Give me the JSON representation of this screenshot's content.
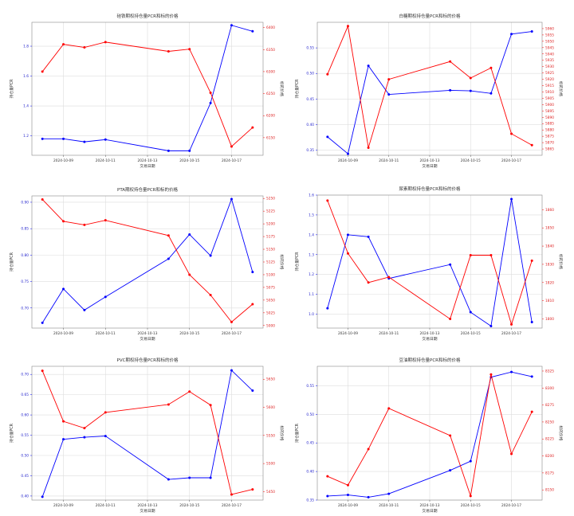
{
  "colors": {
    "pcr": "#0000ff",
    "price": "#ff0000",
    "grid": "#dddddd",
    "frame": "#888888"
  },
  "chart_data": [
    {
      "type": "line",
      "title": "硅铁期权持仓量PCR和标的价格",
      "xlabel": "交易日期",
      "ylabel": "持仓量PCR",
      "y2label": "标的价格",
      "x": [
        "2024-10-08",
        "2024-10-09",
        "2024-10-10",
        "2024-10-11",
        "2024-10-14",
        "2024-10-15",
        "2024-10-16",
        "2024-10-17",
        "2024-10-18"
      ],
      "xticks": [
        "2024-10-09",
        "2024-10-11",
        "2024-10-13",
        "2024-10-15",
        "2024-10-17"
      ],
      "xlim": [
        "2024-10-07T12",
        "2024-10-18T12"
      ],
      "ylim": [
        1.07,
        1.96
      ],
      "yticks": [
        "1.2",
        "1.4",
        "1.6",
        "1.8"
      ],
      "y2lim": [
        6110,
        6412
      ],
      "y2ticks": [
        "6150",
        "6200",
        "6250",
        "6300",
        "6350",
        "6400"
      ],
      "grid": true,
      "series": [
        {
          "axis": "left",
          "values": [
            1.18,
            1.18,
            1.16,
            1.175,
            1.1,
            1.1,
            1.42,
            1.94,
            1.9
          ]
        },
        {
          "axis": "right",
          "values": [
            6300,
            6362,
            6355,
            6367,
            6346,
            6351,
            6252,
            6130,
            6173
          ]
        }
      ]
    },
    {
      "type": "line",
      "title": "白糖期权持仓量PCR和标的价格",
      "xlabel": "交易日期",
      "ylabel": "持仓量PCR",
      "y2label": "标的价格",
      "x": [
        "2024-10-08",
        "2024-10-09",
        "2024-10-10",
        "2024-10-11",
        "2024-10-14",
        "2024-10-15",
        "2024-10-16",
        "2024-10-17",
        "2024-10-18"
      ],
      "xticks": [
        "2024-10-09",
        "2024-10-11",
        "2024-10-13",
        "2024-10-15",
        "2024-10-17"
      ],
      "xlim": [
        "2024-10-07T12",
        "2024-10-18T12"
      ],
      "ylim": [
        0.34,
        0.6
      ],
      "yticks": [
        "0.35",
        "0.40",
        "0.45",
        "0.50",
        "0.55"
      ],
      "y2lim": [
        5860,
        5965
      ],
      "y2ticks": [
        "5865",
        "5870",
        "5875",
        "5880",
        "5885",
        "5890",
        "5895",
        "5900",
        "5905",
        "5910",
        "5915",
        "5920",
        "5925",
        "5930",
        "5935",
        "5940",
        "5945",
        "5950",
        "5955",
        "5960"
      ],
      "grid": true,
      "series": [
        {
          "axis": "left",
          "values": [
            0.376,
            0.343,
            0.515,
            0.459,
            0.467,
            0.466,
            0.461,
            0.577,
            0.582
          ]
        },
        {
          "axis": "right",
          "values": [
            5924,
            5962,
            5866,
            5920,
            5934,
            5921,
            5929,
            5877,
            5868
          ]
        }
      ]
    },
    {
      "type": "line",
      "title": "PTA期权持仓量PCR和标的价格",
      "xlabel": "交易日期",
      "ylabel": "持仓量PCR",
      "y2label": "标的价格",
      "x": [
        "2024-10-08",
        "2024-10-09",
        "2024-10-10",
        "2024-10-11",
        "2024-10-14",
        "2024-10-15",
        "2024-10-16",
        "2024-10-17",
        "2024-10-18"
      ],
      "xticks": [
        "2024-10-09",
        "2024-10-11",
        "2024-10-13",
        "2024-10-15",
        "2024-10-17"
      ],
      "xlim": [
        "2024-10-07T12",
        "2024-10-18T12"
      ],
      "ylim": [
        0.662,
        0.912
      ],
      "yticks": [
        "0.70",
        "0.75",
        "0.80",
        "0.85",
        "0.90"
      ],
      "y2lim": [
        4995,
        5255
      ],
      "y2ticks": [
        "5000",
        "5025",
        "5050",
        "5075",
        "5100",
        "5125",
        "5150",
        "5175",
        "5200",
        "5225",
        "5250"
      ],
      "grid": true,
      "series": [
        {
          "axis": "left",
          "values": [
            0.672,
            0.736,
            0.696,
            0.721,
            0.793,
            0.839,
            0.799,
            0.906,
            0.768
          ]
        },
        {
          "axis": "right",
          "values": [
            5248,
            5205,
            5198,
            5207,
            5177,
            5100,
            5060,
            5007,
            5042
          ]
        }
      ]
    },
    {
      "type": "line",
      "title": "尿素期权持仓量PCR和标的价格",
      "xlabel": "交易日期",
      "ylabel": "持仓量PCR",
      "y2label": "标的价格",
      "x": [
        "2024-10-08",
        "2024-10-09",
        "2024-10-10",
        "2024-10-11",
        "2024-10-14",
        "2024-10-15",
        "2024-10-16",
        "2024-10-17",
        "2024-10-18"
      ],
      "xticks": [
        "2024-10-09",
        "2024-10-11",
        "2024-10-13",
        "2024-10-15",
        "2024-10-17"
      ],
      "xlim": [
        "2024-10-07T12",
        "2024-10-18T12"
      ],
      "ylim": [
        0.93,
        1.6
      ],
      "yticks": [
        "1.0",
        "1.1",
        "1.2",
        "1.3",
        "1.4",
        "1.5",
        "1.6"
      ],
      "y2lim": [
        1795,
        1868
      ],
      "y2ticks": [
        "1800",
        "1810",
        "1820",
        "1830",
        "1840",
        "1850",
        "1860"
      ],
      "grid": true,
      "series": [
        {
          "axis": "left",
          "values": [
            1.03,
            1.4,
            1.39,
            1.18,
            1.25,
            1.01,
            0.94,
            1.58,
            0.96
          ]
        },
        {
          "axis": "right",
          "values": [
            1865,
            1836,
            1820,
            1823,
            1800,
            1835,
            1835,
            1797,
            1832
          ]
        }
      ]
    },
    {
      "type": "line",
      "title": "PVC期权持仓量PCR和标的价格",
      "xlabel": "交易日期",
      "ylabel": "持仓量PCR",
      "y2label": "标的价格",
      "x": [
        "2024-10-08",
        "2024-10-09",
        "2024-10-10",
        "2024-10-11",
        "2024-10-14",
        "2024-10-15",
        "2024-10-16",
        "2024-10-17",
        "2024-10-18"
      ],
      "xticks": [
        "2024-10-09",
        "2024-10-11",
        "2024-10-13",
        "2024-10-15",
        "2024-10-17"
      ],
      "xlim": [
        "2024-10-07T12",
        "2024-10-18T12"
      ],
      "ylim": [
        0.39,
        0.72
      ],
      "yticks": [
        "0.40",
        "0.45",
        "0.50",
        "0.55",
        "0.60",
        "0.65",
        "0.70"
      ],
      "y2lim": [
        5435,
        5673
      ],
      "y2ticks": [
        "5450",
        "5500",
        "5550",
        "5600",
        "5650"
      ],
      "grid": true,
      "series": [
        {
          "axis": "left",
          "values": [
            0.398,
            0.54,
            0.545,
            0.548,
            0.441,
            0.445,
            0.445,
            0.71,
            0.66
          ]
        },
        {
          "axis": "right",
          "values": [
            5665,
            5575,
            5563,
            5591,
            5605,
            5628,
            5604,
            5445,
            5454
          ]
        }
      ]
    },
    {
      "type": "line",
      "title": "豆油期权持仓量PCR和标的价格",
      "xlabel": "交易日期",
      "ylabel": "持仓量PCR",
      "y2label": "标的价格",
      "x": [
        "2024-10-08",
        "2024-10-09",
        "2024-10-10",
        "2024-10-11",
        "2024-10-14",
        "2024-10-15",
        "2024-10-16",
        "2024-10-17",
        "2024-10-18"
      ],
      "xticks": [
        "2024-10-09",
        "2024-10-11",
        "2024-10-13",
        "2024-10-15",
        "2024-10-17"
      ],
      "xlim": [
        "2024-10-07T12",
        "2024-10-18T12"
      ],
      "ylim": [
        0.35,
        0.584
      ],
      "yticks": [
        "0.35",
        "0.40",
        "0.45",
        "0.50",
        "0.55"
      ],
      "y2lim": [
        8135,
        8332
      ],
      "y2ticks": [
        "8150",
        "8175",
        "8200",
        "8225",
        "8250",
        "8275",
        "8300",
        "8325"
      ],
      "grid": true,
      "series": [
        {
          "axis": "left",
          "values": [
            0.357,
            0.359,
            0.355,
            0.361,
            0.402,
            0.418,
            0.565,
            0.574,
            0.566
          ]
        },
        {
          "axis": "right",
          "values": [
            8170,
            8157,
            8210,
            8270,
            8230,
            8141,
            8320,
            8203,
            8265
          ]
        }
      ]
    }
  ]
}
